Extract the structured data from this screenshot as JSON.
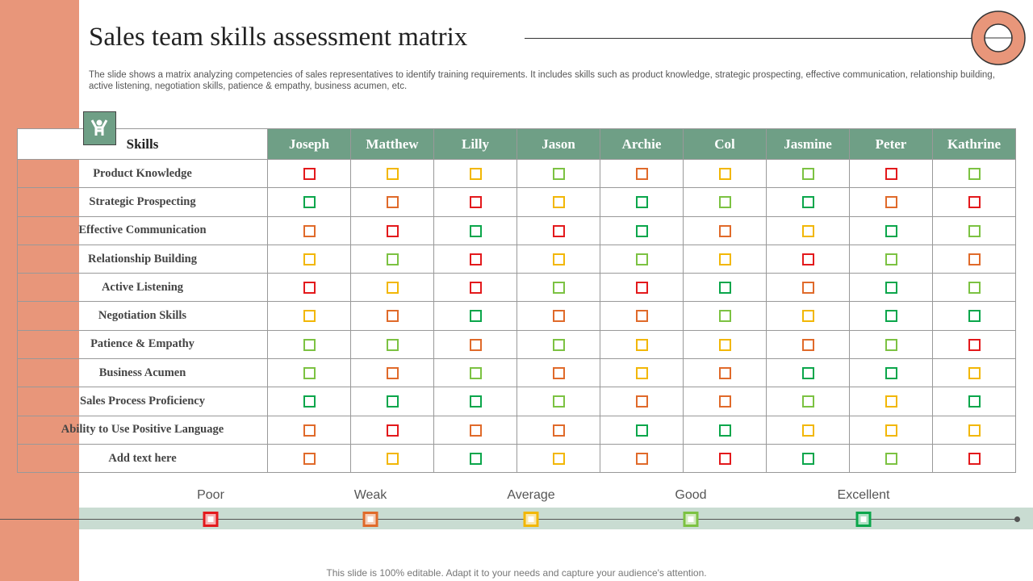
{
  "header": {
    "title": "Sales team skills assessment matrix",
    "description": "The slide shows a matrix analyzing competencies of sales representatives to identify training requirements. It includes skills such as product knowledge, strategic prospecting, effective communication, relationship building, active listening, negotiation skills, patience & empathy, business acumen, etc."
  },
  "legend": {
    "levels": [
      {
        "label": "Poor",
        "value": 1,
        "color": "#e3191c"
      },
      {
        "label": "Weak",
        "value": 2,
        "color": "#e06a2a"
      },
      {
        "label": "Average",
        "value": 3,
        "color": "#f2b705"
      },
      {
        "label": "Good",
        "value": 4,
        "color": "#7cc242"
      },
      {
        "label": "Excellent",
        "value": 5,
        "color": "#0aa64b"
      }
    ]
  },
  "table": {
    "corner": "Skills",
    "columns": [
      "Joseph",
      "Matthew",
      "Lilly",
      "Jason",
      "Archie",
      "Col",
      "Jasmine",
      "Peter",
      "Kathrine"
    ],
    "rows": [
      {
        "skill": "Product  Knowledge",
        "ratings": [
          1,
          3,
          3,
          4,
          2,
          3,
          4,
          1,
          4
        ]
      },
      {
        "skill": "Strategic Prospecting",
        "ratings": [
          5,
          2,
          1,
          3,
          5,
          4,
          5,
          2,
          1
        ]
      },
      {
        "skill": "Effective Communication",
        "ratings": [
          2,
          1,
          5,
          1,
          5,
          2,
          3,
          5,
          4
        ]
      },
      {
        "skill": "Relationship Building",
        "ratings": [
          3,
          4,
          1,
          3,
          4,
          3,
          1,
          4,
          2
        ]
      },
      {
        "skill": "Active Listening",
        "ratings": [
          1,
          3,
          1,
          4,
          1,
          5,
          2,
          5,
          4
        ]
      },
      {
        "skill": "Negotiation Skills",
        "ratings": [
          3,
          2,
          5,
          2,
          2,
          4,
          3,
          5,
          5
        ]
      },
      {
        "skill": "Patience & Empathy",
        "ratings": [
          4,
          4,
          2,
          4,
          3,
          3,
          2,
          4,
          1
        ]
      },
      {
        "skill": "Business Acumen",
        "ratings": [
          4,
          2,
          4,
          2,
          3,
          2,
          5,
          5,
          3
        ]
      },
      {
        "skill": "Sales Process Proficiency",
        "ratings": [
          5,
          5,
          5,
          4,
          2,
          2,
          4,
          3,
          5
        ]
      },
      {
        "skill": "Ability  to Use Positive Language",
        "ratings": [
          2,
          1,
          2,
          2,
          5,
          5,
          3,
          3,
          3
        ]
      },
      {
        "skill": "Add  text here",
        "ratings": [
          2,
          3,
          5,
          3,
          2,
          1,
          5,
          4,
          1
        ]
      }
    ]
  },
  "footer": "This slide is 100% editable. Adapt it to your needs and capture your audience's attention."
}
